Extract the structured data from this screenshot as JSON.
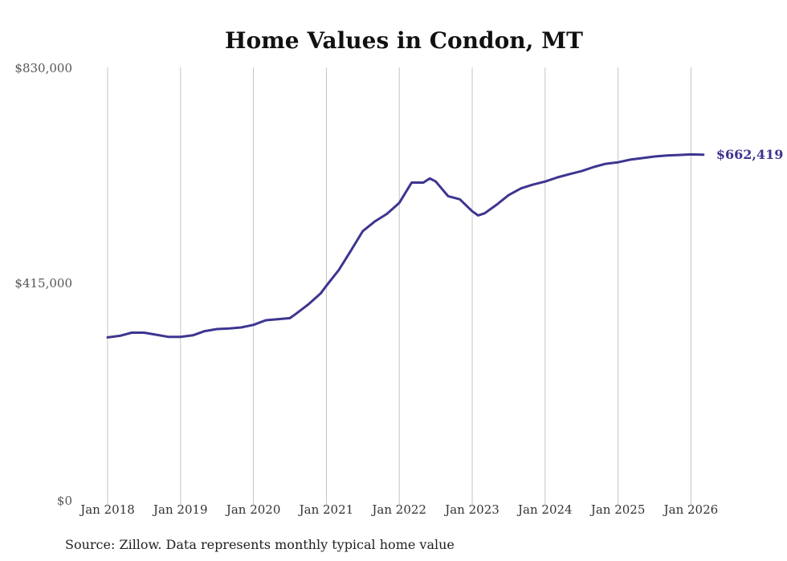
{
  "chart_data": {
    "type": "line",
    "title": "Home Values in Condon, MT",
    "source": "Source: Zillow. Data represents monthly typical home value",
    "ylim": [
      0,
      830000
    ],
    "yticks": [
      "$0",
      "$415,000",
      "$830,000"
    ],
    "xticks": [
      "Jan 2018",
      "Jan 2019",
      "Jan 2020",
      "Jan 2021",
      "Jan 2022",
      "Jan 2023",
      "Jan 2024",
      "Jan 2025",
      "Jan 2026"
    ],
    "x_start": 2018.0,
    "x_end": 2026.17,
    "grid": "vertical",
    "color": "#3d3591",
    "end_label": "$662,419",
    "series": [
      {
        "name": "Typical home value",
        "x": [
          2018.0,
          2018.17,
          2018.33,
          2018.5,
          2018.67,
          2018.83,
          2019.0,
          2019.17,
          2019.33,
          2019.5,
          2019.67,
          2019.83,
          2020.0,
          2020.17,
          2020.33,
          2020.5,
          2020.58,
          2020.75,
          2020.92,
          2021.0,
          2021.17,
          2021.33,
          2021.5,
          2021.67,
          2021.83,
          2022.0,
          2022.17,
          2022.33,
          2022.42,
          2022.5,
          2022.67,
          2022.83,
          2023.0,
          2023.08,
          2023.17,
          2023.33,
          2023.5,
          2023.67,
          2023.83,
          2024.0,
          2024.17,
          2024.33,
          2024.5,
          2024.67,
          2024.83,
          2025.0,
          2025.17,
          2025.33,
          2025.5,
          2025.67,
          2025.83,
          2026.0,
          2026.17
        ],
        "values": [
          312000,
          315000,
          321000,
          321000,
          317000,
          313000,
          313000,
          316000,
          324000,
          328000,
          329000,
          331000,
          336000,
          345000,
          347000,
          349000,
          357000,
          375000,
          396000,
          411000,
          441000,
          477000,
          516000,
          535000,
          549000,
          570000,
          609000,
          609000,
          617000,
          611000,
          583000,
          577000,
          554000,
          546000,
          550000,
          566000,
          585000,
          598000,
          605000,
          611000,
          619000,
          625000,
          631000,
          639000,
          645000,
          648000,
          653000,
          656000,
          659000,
          661000,
          662000,
          663000,
          662419
        ]
      }
    ]
  }
}
